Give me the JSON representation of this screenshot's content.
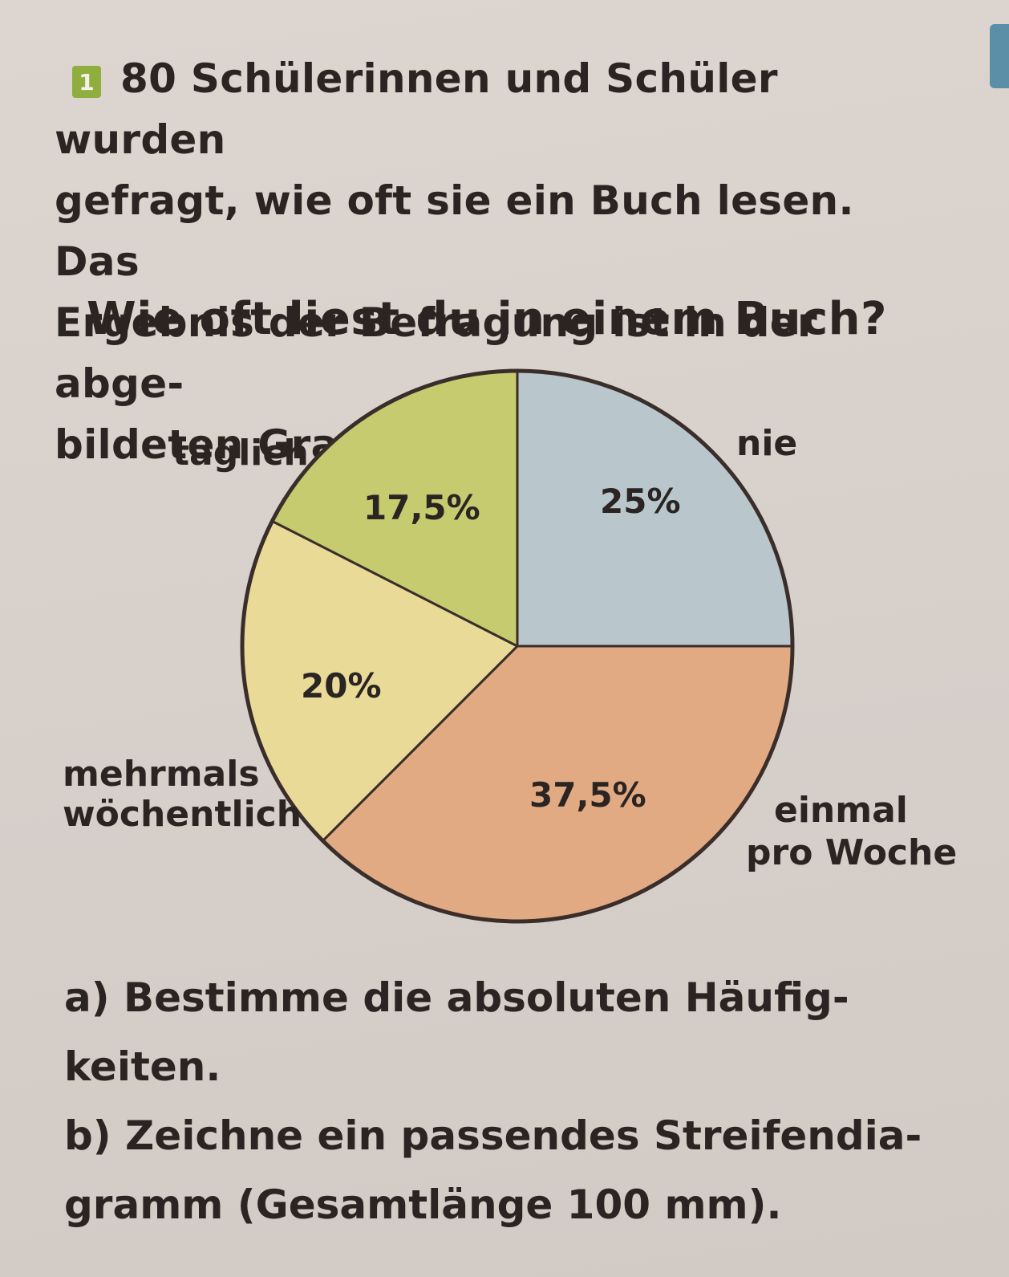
{
  "task": {
    "number": "1",
    "intro_lines": [
      "80 Schülerinnen und Schüler wurden",
      "gefragt, wie oft sie ein Buch lesen. Das",
      "Ergebnis der Befragung ist in der abge-",
      "bildeten Grafik dargestellt."
    ],
    "part_a": "a) Bestimme die absoluten Häufig-",
    "part_a_cont": "keiten.",
    "part_b": "b) Zeichne ein passendes Streifendia-",
    "part_b_cont": "gramm (Gesamtlänge 100 mm)."
  },
  "chart_data": {
    "type": "pie",
    "title": "Wie oft liest du in einem Buch?",
    "total_respondents": 80,
    "slices": [
      {
        "label": "nie",
        "value": 25,
        "display": "25%",
        "color": "#b9c6cc"
      },
      {
        "label": "einmal pro Woche",
        "label_lines": [
          "einmal",
          "pro Woche"
        ],
        "value": 37.5,
        "display": "37,5%",
        "color": "#e2aa82"
      },
      {
        "label": "mehrmals wöchentlich",
        "label_lines": [
          "mehrmals",
          "wöchentlich"
        ],
        "value": 20,
        "display": "20%",
        "color": "#e9da98"
      },
      {
        "label": "täglich",
        "value": 17.5,
        "display": "17,5%",
        "color": "#c6cb70"
      }
    ]
  }
}
